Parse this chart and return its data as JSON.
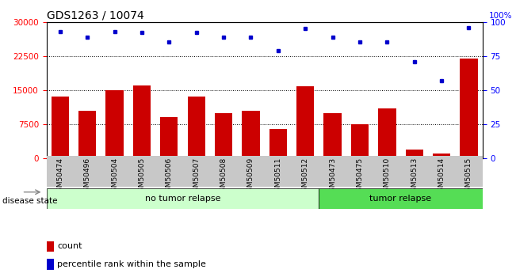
{
  "title": "GDS1263 / 10074",
  "categories": [
    "GSM50474",
    "GSM50496",
    "GSM50504",
    "GSM50505",
    "GSM50506",
    "GSM50507",
    "GSM50508",
    "GSM50509",
    "GSM50511",
    "GSM50512",
    "GSM50473",
    "GSM50475",
    "GSM50510",
    "GSM50513",
    "GSM50514",
    "GSM50515"
  ],
  "bar_values": [
    13500,
    10500,
    15000,
    16000,
    9000,
    13500,
    10000,
    10500,
    6500,
    15800,
    10000,
    7500,
    11000,
    2000,
    1000,
    22000
  ],
  "percentile_values": [
    93,
    89,
    93,
    92,
    85,
    92,
    89,
    89,
    79,
    95,
    89,
    85,
    85,
    71,
    57,
    96
  ],
  "no_tumor_count": 10,
  "bar_color": "#cc0000",
  "dot_color": "#0000cc",
  "ylim_left": [
    0,
    30000
  ],
  "ylim_right": [
    0,
    100
  ],
  "yticks_left": [
    0,
    7500,
    15000,
    22500,
    30000
  ],
  "yticks_right": [
    0,
    25,
    50,
    75,
    100
  ],
  "grid_values": [
    7500,
    15000,
    22500
  ],
  "no_tumor_bg": "#ccffcc",
  "tumor_bg": "#55dd55",
  "xticklabel_bg": "#c8c8c8",
  "disease_state_label": "disease state",
  "no_tumor_label": "no tumor relapse",
  "tumor_label": "tumor relapse",
  "legend_count": "count",
  "legend_percentile": "percentile rank within the sample",
  "right_axis_label": "100%",
  "title_fontsize": 10,
  "tick_fontsize": 7.5,
  "bar_fontsize": 6.5
}
